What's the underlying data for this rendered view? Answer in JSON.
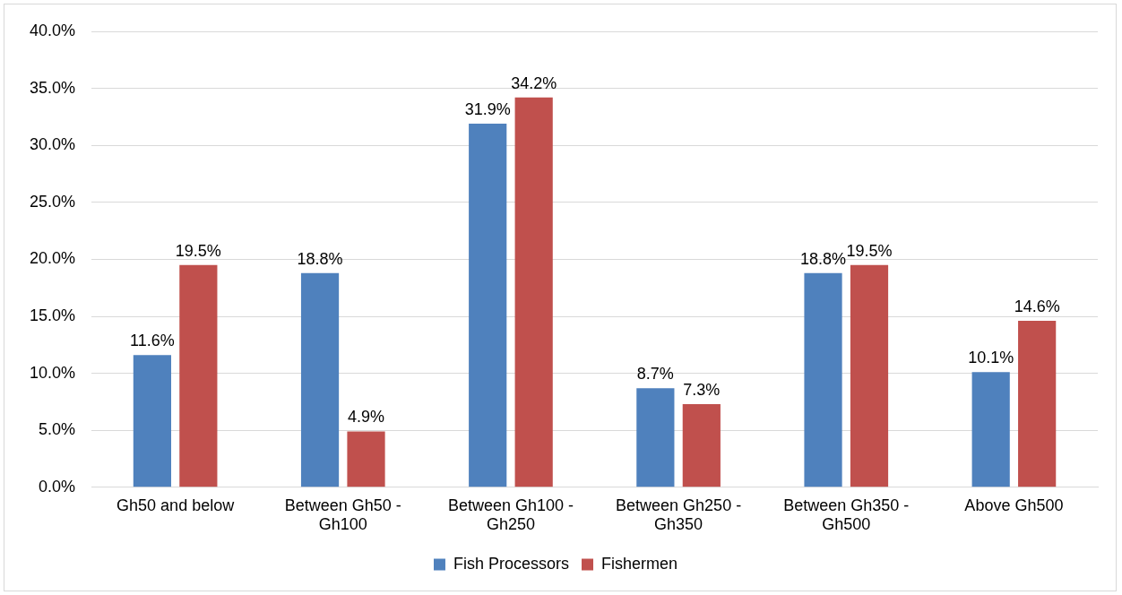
{
  "chart_data": {
    "type": "bar",
    "categories": [
      "Gh50 and below",
      "Between Gh50 - Gh100",
      "Between Gh100 - Gh250",
      "Between Gh250 - Gh350",
      "Between Gh350 - Gh500",
      "Above Gh500"
    ],
    "series": [
      {
        "name": "Fish Processors",
        "color": "#4f81bd",
        "values": [
          11.6,
          18.8,
          31.9,
          8.7,
          18.8,
          10.1
        ],
        "value_labels": [
          "11.6%",
          "18.8%",
          "31.9%",
          "8.7%",
          "18.8%",
          "10.1%"
        ]
      },
      {
        "name": "Fishermen",
        "color": "#c0504d",
        "values": [
          19.5,
          4.9,
          34.2,
          7.3,
          19.5,
          14.6
        ],
        "value_labels": [
          "19.5%",
          "4.9%",
          "34.2%",
          "7.3%",
          "19.5%",
          "14.6%"
        ]
      }
    ],
    "ylim": [
      0,
      40
    ],
    "yticks": [
      {
        "value": 0,
        "label": "0.0%"
      },
      {
        "value": 5,
        "label": "5.0%"
      },
      {
        "value": 10,
        "label": "10.0%"
      },
      {
        "value": 15,
        "label": "15.0%"
      },
      {
        "value": 20,
        "label": "20.0%"
      },
      {
        "value": 25,
        "label": "25.0%"
      },
      {
        "value": 30,
        "label": "30.0%"
      },
      {
        "value": 35,
        "label": "35.0%"
      },
      {
        "value": 40,
        "label": "40.0%"
      }
    ],
    "grid": "y",
    "legend": "bottom"
  }
}
